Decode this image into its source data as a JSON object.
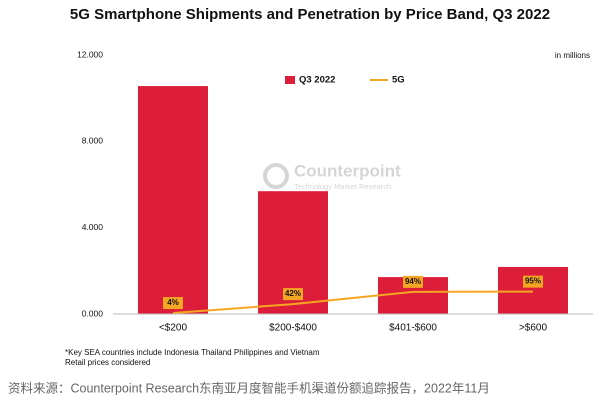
{
  "chart_data": {
    "type": "bar",
    "title": "5G Smartphone Shipments and Penetration by Price Band, Q3 2022",
    "unit_note": "in millions",
    "categories": [
      "<$200",
      "$200-$400",
      "$401-$600",
      ">$600"
    ],
    "series": [
      {
        "name": "Q3 2022",
        "color": "#dc1e3a",
        "values": [
          10.56,
          5.69,
          1.71,
          2.18
        ]
      },
      {
        "name": "5G",
        "color": "#f5a623",
        "type": "line",
        "axis": "y2",
        "values": [
          4,
          42,
          94,
          95
        ],
        "value_labels": [
          "4%",
          "42%",
          "94%",
          "95%"
        ]
      }
    ],
    "ylim": [
      0,
      12
    ],
    "yticks": [
      {
        "value": 0,
        "label": "0.000"
      },
      {
        "value": 4,
        "label": "4.000"
      },
      {
        "value": 8,
        "label": "8.000"
      },
      {
        "value": 12,
        "label": "12.000"
      }
    ],
    "y2lim": [
      0,
      1100
    ],
    "legend": "top",
    "watermark": {
      "brand": "Counterpoint",
      "tagline": "Technology Market Research"
    },
    "footnotes": [
      "*Key SEA countries include Indonesia Thailand Philippines and Vietnam",
      "Retail prices considered"
    ],
    "source": "资料来源：Counterpoint Research东南亚月度智能手机渠道份额追踪报告，2022年11月"
  }
}
